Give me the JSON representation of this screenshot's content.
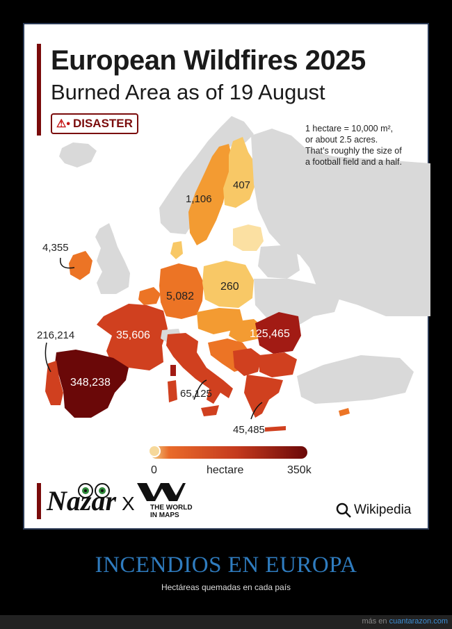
{
  "map": {
    "title": "European Wildfires 2025",
    "subtitle": "Burned Area as of 19 August",
    "badge": "DISASTER",
    "note_lines": [
      "1 hectare = 10,000 m²,",
      "or about 2.5 acres.",
      "That’s roughly the size of",
      "a football field and a half."
    ],
    "labels": {
      "ireland": "4,355",
      "portugal": "216,214",
      "spain": "348,238",
      "france": "35,606",
      "germany": "5,082",
      "poland": "260",
      "sweden": "1,106",
      "finland": "407",
      "romania": "125,465",
      "italy": "65,125",
      "greece": "45,485"
    },
    "legend": {
      "min": "0",
      "mid": "hectare",
      "max": "350k"
    },
    "footer": {
      "brand1": "Nazar",
      "sep": "X",
      "brand2_line1": "THE WORLD",
      "brand2_line2": "IN MAPS",
      "source": "Wikipedia"
    }
  },
  "colors": {
    "darkest": "#6a0808",
    "dark": "#a21b14",
    "mid": "#d0401f",
    "orange": "#ec7425",
    "light_orange": "#f39b32",
    "yellow": "#f8c866",
    "pale": "#fbe0a2",
    "grey": "#d9d9d9",
    "accent": "#7a0b0b"
  },
  "caption": {
    "title": "INCENDIOS EN EUROPA",
    "subtitle": "Hectáreas quemadas en cada país"
  },
  "site": {
    "prefix": "más en",
    "link": "cuantarazon.com"
  }
}
